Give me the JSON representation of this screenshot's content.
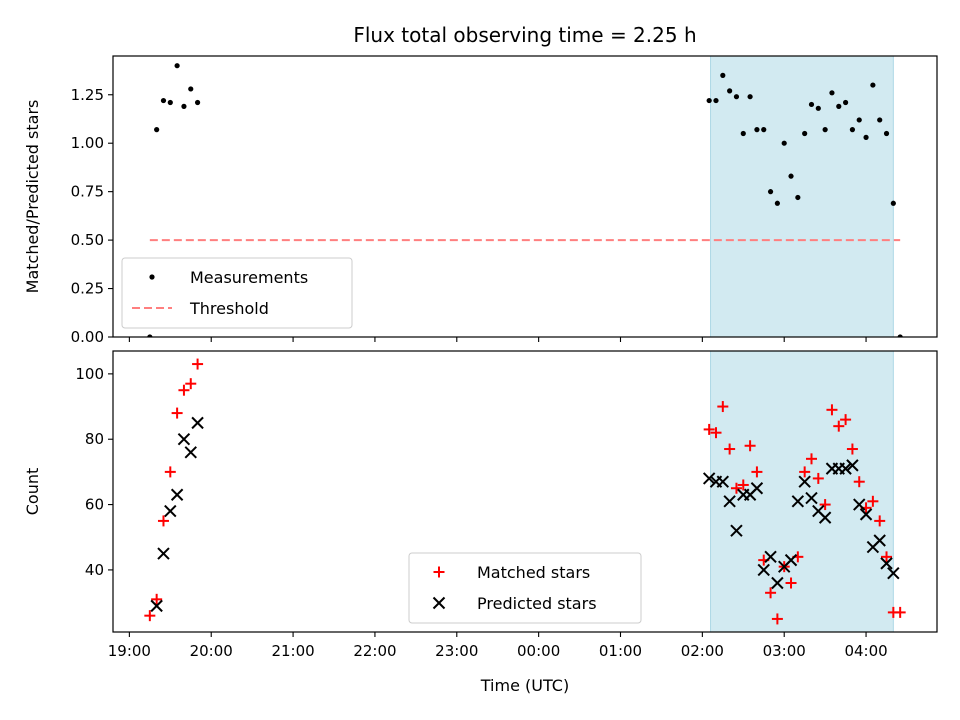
{
  "chart_data": {
    "type": "scatter",
    "title": "Flux total observing time = 2.25 h",
    "xlabel": "Time (UTC)",
    "x_tick_labels": [
      "19:00",
      "20:00",
      "21:00",
      "22:00",
      "23:00",
      "00:00",
      "01:00",
      "02:00",
      "03:00",
      "04:00"
    ],
    "x_ticks": [
      "19:00",
      "20:00",
      "21:00",
      "22:00",
      "23:00",
      "00:00",
      "01:00",
      "02:00",
      "03:00",
      "04:00"
    ],
    "xlim": [
      "18:48",
      "04:52"
    ],
    "shaded_interval": [
      "02:06",
      "04:20"
    ],
    "colors": {
      "shade": "#add8e6",
      "measurement": "#000000",
      "threshold": "#ff7f7f",
      "matched": "#ff0000",
      "predicted": "#000000"
    },
    "panels": [
      {
        "ylabel": "Matched/Predicted stars",
        "ylim": [
          0,
          1.45
        ],
        "y_ticks": [
          0.0,
          0.25,
          0.5,
          0.75,
          1.0,
          1.25
        ],
        "y_tick_labels": [
          "0.00",
          "0.25",
          "0.50",
          "0.75",
          "1.00",
          "1.25"
        ],
        "legend_position": "lower-left",
        "series": [
          {
            "name": "Measurements",
            "marker": "dot",
            "points": [
              [
                "19:15",
                0.0
              ],
              [
                "19:20",
                1.07
              ],
              [
                "19:25",
                1.22
              ],
              [
                "19:30",
                1.21
              ],
              [
                "19:35",
                1.4
              ],
              [
                "19:40",
                1.19
              ],
              [
                "19:45",
                1.28
              ],
              [
                "19:50",
                1.21
              ],
              [
                "02:05",
                1.22
              ],
              [
                "02:10",
                1.22
              ],
              [
                "02:15",
                1.35
              ],
              [
                "02:20",
                1.27
              ],
              [
                "02:25",
                1.24
              ],
              [
                "02:30",
                1.05
              ],
              [
                "02:35",
                1.24
              ],
              [
                "02:40",
                1.07
              ],
              [
                "02:45",
                1.07
              ],
              [
                "02:50",
                0.75
              ],
              [
                "02:55",
                0.69
              ],
              [
                "03:00",
                1.0
              ],
              [
                "03:05",
                0.83
              ],
              [
                "03:10",
                0.72
              ],
              [
                "03:15",
                1.05
              ],
              [
                "03:20",
                1.2
              ],
              [
                "03:25",
                1.18
              ],
              [
                "03:30",
                1.07
              ],
              [
                "03:35",
                1.26
              ],
              [
                "03:40",
                1.19
              ],
              [
                "03:45",
                1.21
              ],
              [
                "03:50",
                1.07
              ],
              [
                "03:55",
                1.12
              ],
              [
                "04:00",
                1.03
              ],
              [
                "04:05",
                1.3
              ],
              [
                "04:10",
                1.12
              ],
              [
                "04:15",
                1.05
              ],
              [
                "04:20",
                0.69
              ],
              [
                "04:25",
                0.0
              ]
            ]
          },
          {
            "name": "Threshold",
            "marker": "dashed-line",
            "points": [
              [
                "19:15",
                0.5
              ],
              [
                "04:25",
                0.5
              ]
            ]
          }
        ]
      },
      {
        "ylabel": "Count",
        "ylim": [
          21,
          107
        ],
        "y_ticks": [
          40,
          60,
          80,
          100
        ],
        "y_tick_labels": [
          "40",
          "60",
          "80",
          "100"
        ],
        "legend_position": "lower-center",
        "series": [
          {
            "name": "Matched stars",
            "marker": "plus",
            "points": [
              [
                "19:15",
                26
              ],
              [
                "19:20",
                31
              ],
              [
                "19:25",
                55
              ],
              [
                "19:30",
                70
              ],
              [
                "19:35",
                88
              ],
              [
                "19:40",
                95
              ],
              [
                "19:45",
                97
              ],
              [
                "19:50",
                103
              ],
              [
                "02:05",
                83
              ],
              [
                "02:10",
                82
              ],
              [
                "02:15",
                90
              ],
              [
                "02:20",
                77
              ],
              [
                "02:25",
                65
              ],
              [
                "02:30",
                66
              ],
              [
                "02:35",
                78
              ],
              [
                "02:40",
                70
              ],
              [
                "02:45",
                43
              ],
              [
                "02:50",
                33
              ],
              [
                "02:55",
                25
              ],
              [
                "03:00",
                41
              ],
              [
                "03:05",
                36
              ],
              [
                "03:10",
                44
              ],
              [
                "03:15",
                70
              ],
              [
                "03:20",
                74
              ],
              [
                "03:25",
                68
              ],
              [
                "03:30",
                60
              ],
              [
                "03:35",
                89
              ],
              [
                "03:40",
                84
              ],
              [
                "03:45",
                86
              ],
              [
                "03:50",
                77
              ],
              [
                "03:55",
                67
              ],
              [
                "04:00",
                59
              ],
              [
                "04:05",
                61
              ],
              [
                "04:10",
                55
              ],
              [
                "04:15",
                44
              ],
              [
                "04:20",
                27
              ],
              [
                "04:25",
                27
              ]
            ]
          },
          {
            "name": "Predicted stars",
            "marker": "x",
            "points": [
              [
                "19:20",
                29
              ],
              [
                "19:25",
                45
              ],
              [
                "19:30",
                58
              ],
              [
                "19:35",
                63
              ],
              [
                "19:40",
                80
              ],
              [
                "19:45",
                76
              ],
              [
                "19:50",
                85
              ],
              [
                "02:05",
                68
              ],
              [
                "02:10",
                67
              ],
              [
                "02:15",
                67
              ],
              [
                "02:20",
                61
              ],
              [
                "02:25",
                52
              ],
              [
                "02:30",
                63
              ],
              [
                "02:35",
                63
              ],
              [
                "02:40",
                65
              ],
              [
                "02:45",
                40
              ],
              [
                "02:50",
                44
              ],
              [
                "02:55",
                36
              ],
              [
                "03:00",
                41
              ],
              [
                "03:05",
                43
              ],
              [
                "03:10",
                61
              ],
              [
                "03:15",
                67
              ],
              [
                "03:20",
                62
              ],
              [
                "03:25",
                58
              ],
              [
                "03:30",
                56
              ],
              [
                "03:35",
                71
              ],
              [
                "03:40",
                71
              ],
              [
                "03:45",
                71
              ],
              [
                "03:50",
                72
              ],
              [
                "03:55",
                60
              ],
              [
                "04:00",
                57
              ],
              [
                "04:05",
                47
              ],
              [
                "04:10",
                49
              ],
              [
                "04:15",
                42
              ],
              [
                "04:20",
                39
              ]
            ]
          }
        ]
      }
    ]
  }
}
